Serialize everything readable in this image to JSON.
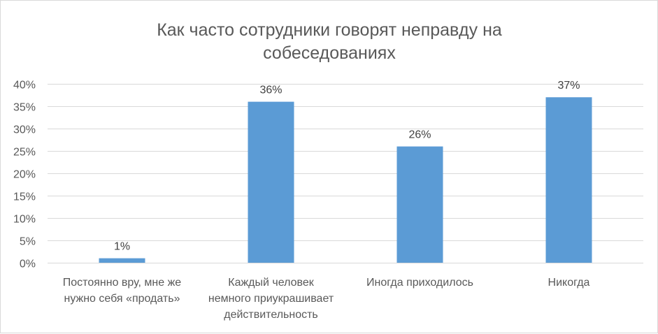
{
  "chart_data": {
    "type": "bar",
    "title_lines": [
      "Как часто сотрудники говорят неправду на",
      "собеседованиях"
    ],
    "categories": [
      [
        "Постоянно вру, мне же",
        "нужно себя «продать»"
      ],
      [
        "Каждый человек",
        "немного приукрашивает",
        "действительность"
      ],
      [
        "Иногда приходилось"
      ],
      [
        "Никогда"
      ]
    ],
    "values": [
      1,
      36,
      26,
      37
    ],
    "data_labels": [
      "1%",
      "36%",
      "26%",
      "37%"
    ],
    "ylim": [
      0,
      40
    ],
    "yticks": [
      0,
      5,
      10,
      15,
      20,
      25,
      30,
      35,
      40
    ],
    "ytick_labels": [
      "0%",
      "5%",
      "10%",
      "15%",
      "20%",
      "25%",
      "30%",
      "35%",
      "40%"
    ],
    "grid": true,
    "legend": "none",
    "bar_color": "#5b9bd5"
  }
}
